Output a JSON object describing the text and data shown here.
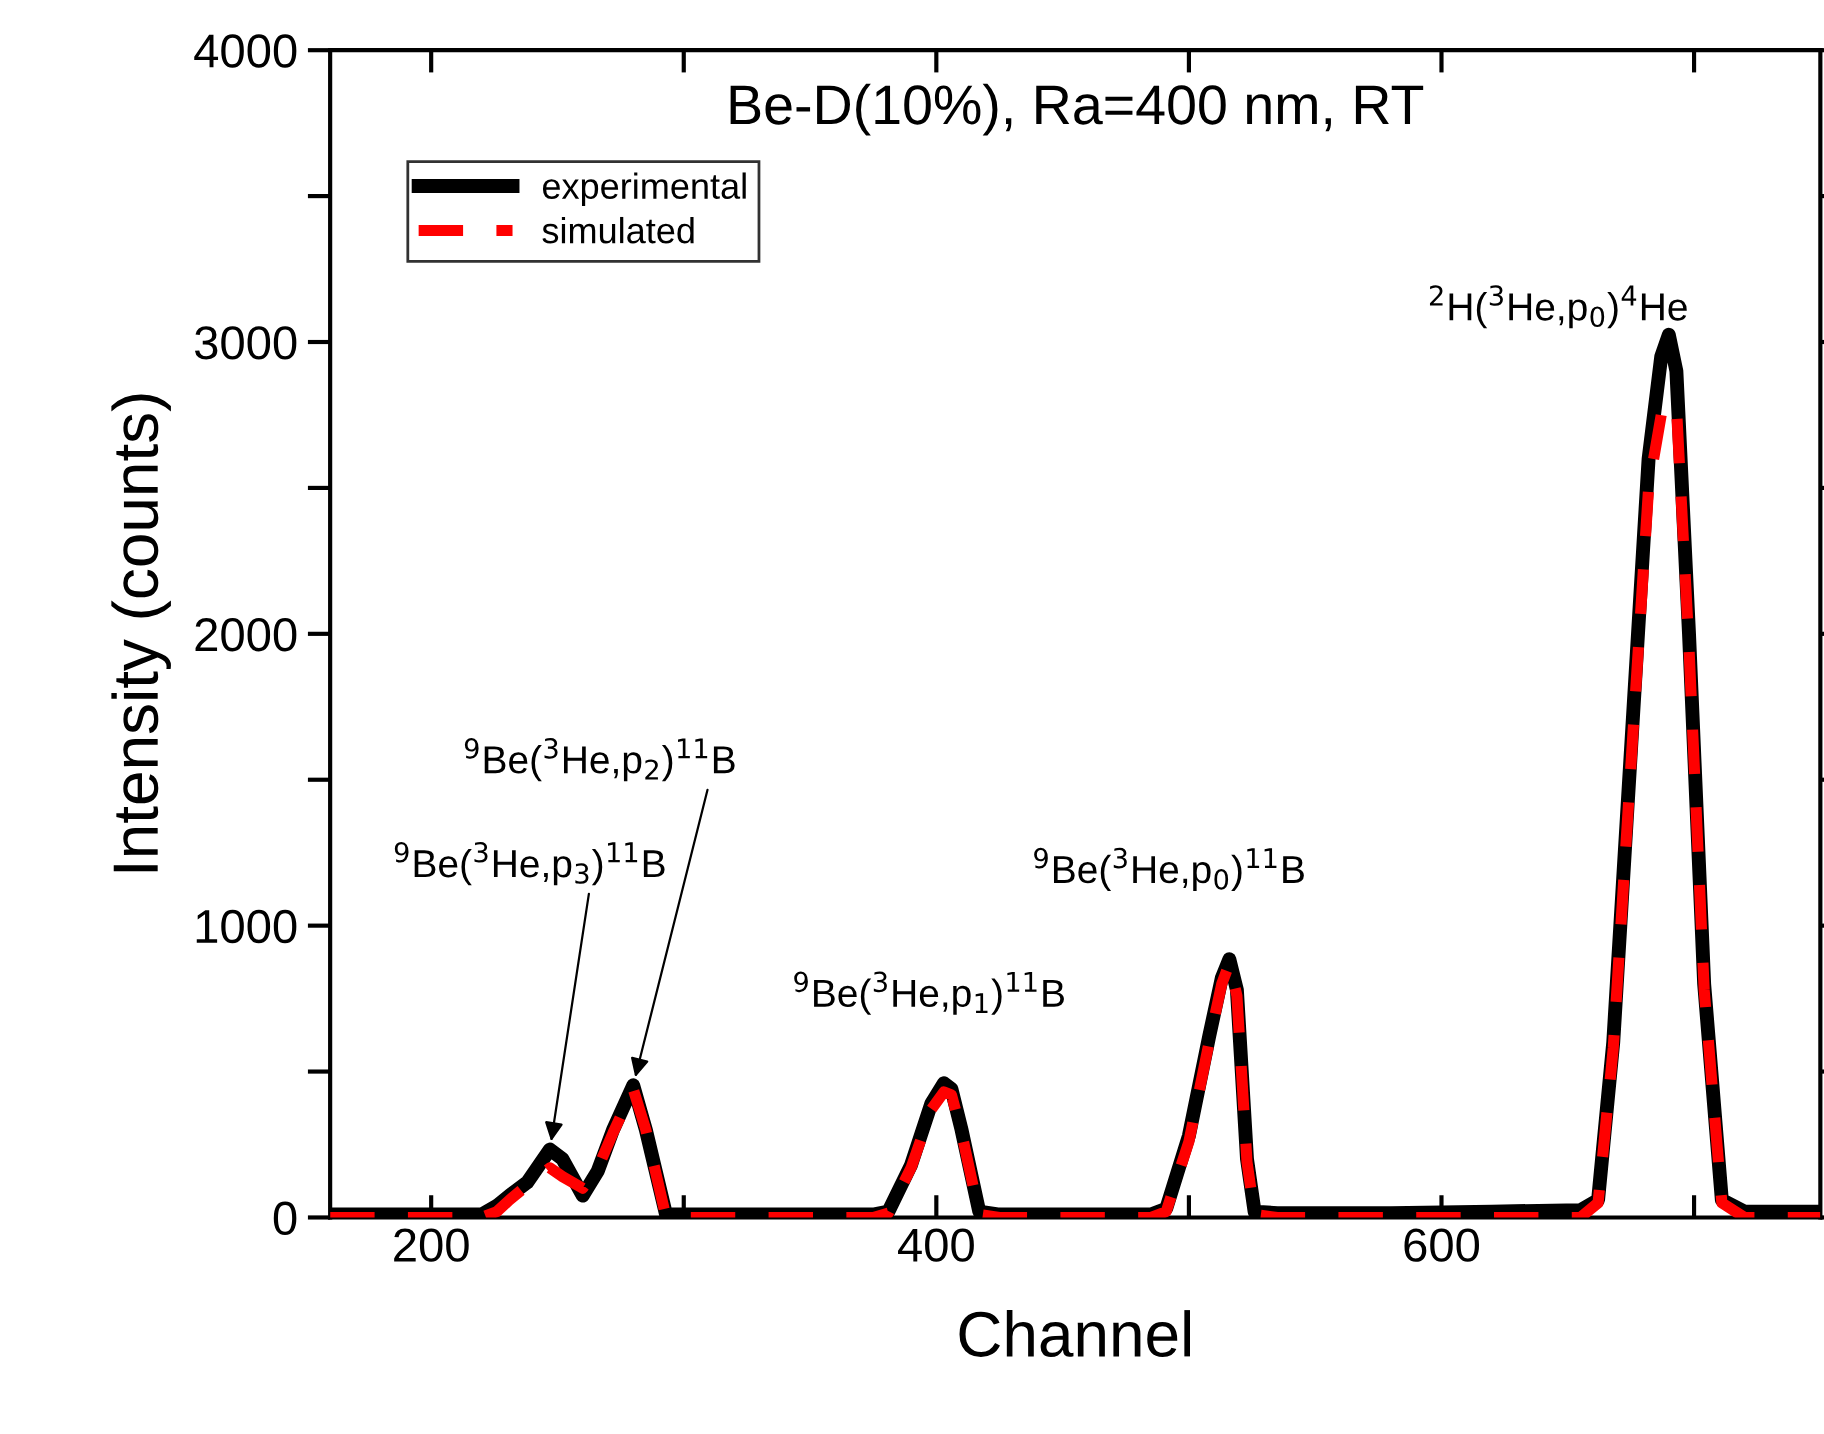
{
  "chart_data": {
    "type": "line",
    "title": "Be-D(10%), Ra=400 nm, RT",
    "xlabel": "Channel",
    "ylabel": "Intensity (counts)",
    "xlim": [
      160,
      750
    ],
    "xticks": [
      200,
      {
        "value": 300,
        "label": null
      },
      400,
      {
        "value": 500,
        "label": null
      },
      600,
      {
        "value": 700,
        "label": null
      }
    ],
    "ylim": [
      0,
      4000
    ],
    "yticks": [
      0,
      {
        "value": 500,
        "label": null
      },
      1000,
      {
        "value": 1500,
        "label": null
      },
      2000,
      {
        "value": 2500,
        "label": null
      },
      3000,
      {
        "value": 3500,
        "label": null
      },
      4000
    ],
    "grid": false,
    "legend": "top left",
    "marker": "none",
    "series": [
      {
        "name": "experimental",
        "color": "#000000",
        "line_style": "solid",
        "x": [
          160,
          190,
          220,
          226,
          231,
          238,
          247,
          252,
          260,
          266,
          272,
          280,
          285,
          293,
          300,
          340,
          375,
          381,
          390,
          398,
          403,
          406,
          410,
          417,
          425,
          460,
          485,
          491,
          500,
          508,
          513,
          516,
          519,
          523,
          526,
          535,
          580,
          620,
          655,
          662,
          668,
          675,
          682,
          687,
          690,
          693,
          698,
          704,
          711,
          720,
          750
        ],
        "values": [
          10,
          10,
          10,
          40,
          75,
          120,
          233,
          200,
          75,
          160,
          300,
          453,
          300,
          10,
          10,
          10,
          10,
          20,
          180,
          390,
          460,
          440,
          300,
          20,
          10,
          10,
          10,
          30,
          280,
          620,
          820,
          885,
          780,
          200,
          20,
          15,
          15,
          20,
          25,
          60,
          600,
          1600,
          2600,
          2950,
          3025,
          2900,
          2000,
          800,
          60,
          20,
          20
        ]
      },
      {
        "name": "simulated",
        "color": "#ff0000",
        "line_style": "dashed",
        "x": [
          160,
          200,
          220,
          226,
          231,
          238,
          247,
          252,
          260,
          266,
          272,
          280,
          285,
          293,
          300,
          340,
          375,
          381,
          390,
          398,
          403,
          406,
          410,
          417,
          425,
          460,
          485,
          491,
          500,
          508,
          513,
          516,
          519,
          523,
          526,
          535,
          580,
          620,
          655,
          662,
          668,
          675,
          682,
          687,
          690,
          693,
          698,
          704,
          711,
          720,
          750
        ],
        "values": [
          0,
          0,
          0,
          20,
          60,
          110,
          170,
          140,
          100,
          170,
          290,
          440,
          300,
          0,
          0,
          0,
          0,
          15,
          170,
          370,
          430,
          420,
          290,
          10,
          0,
          0,
          0,
          20,
          260,
          600,
          800,
          870,
          760,
          190,
          10,
          0,
          0,
          0,
          0,
          50,
          580,
          1550,
          2500,
          2750,
          2785,
          2780,
          1950,
          780,
          50,
          0,
          0
        ]
      }
    ],
    "annotations": [
      {
        "text": "$^{9}$Be($^{3}$He,p$_{3}$)$^{11}$B",
        "x": 247,
        "y": 233
      },
      {
        "text": "$^{9}$Be($^{3}$He,p$_{2}$)$^{11}$B",
        "x": 280,
        "y": 453
      },
      "$^{9}$Be($^{3}$He,p$_{1}$)$^{11}$B",
      "$^{9}$Be($^{3}$He,p$_{0}$)$^{11}$B",
      "$^{2}$H($^{3}$He,p$_{0}$)$^{4}$He"
    ]
  }
}
